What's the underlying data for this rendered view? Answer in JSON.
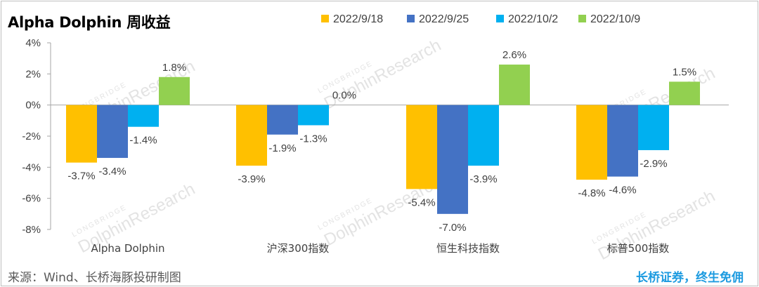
{
  "title": "Alpha Dolphin 周收益",
  "source": "来源：Wind、长桥海豚投研制图",
  "brand": "长桥证券，终生免佣",
  "watermark": {
    "small": "LONGBRIDGE",
    "large": "DolphinResearch"
  },
  "colors": {
    "s1": "#ffc000",
    "s2": "#4472c4",
    "s3": "#00b0f0",
    "s4": "#92d050"
  },
  "chart_data": {
    "type": "bar",
    "categories": [
      "Alpha Dolphin",
      "沪深300指数",
      "恒生科技指数",
      "标普500指数"
    ],
    "series": [
      {
        "name": "2022/9/18",
        "color": "#ffc000",
        "values": [
          -3.7,
          -3.9,
          -5.4,
          -4.8
        ]
      },
      {
        "name": "2022/9/25",
        "color": "#4472c4",
        "values": [
          -3.4,
          -1.9,
          -7.0,
          -4.6
        ]
      },
      {
        "name": "2022/10/2",
        "color": "#00b0f0",
        "values": [
          -1.4,
          -1.3,
          -3.9,
          -2.9
        ]
      },
      {
        "name": "2022/10/9",
        "color": "#92d050",
        "values": [
          1.8,
          0.0,
          2.6,
          1.5
        ]
      }
    ],
    "ylim": [
      -8,
      4
    ],
    "yticks": [
      4,
      2,
      0,
      -2,
      -4,
      -6,
      -8
    ],
    "ytick_labels": [
      "4%",
      "2%",
      "0%",
      "-2%",
      "-4%",
      "-6%",
      "-8%"
    ],
    "unit": "%",
    "legend": "top",
    "grid": false
  }
}
